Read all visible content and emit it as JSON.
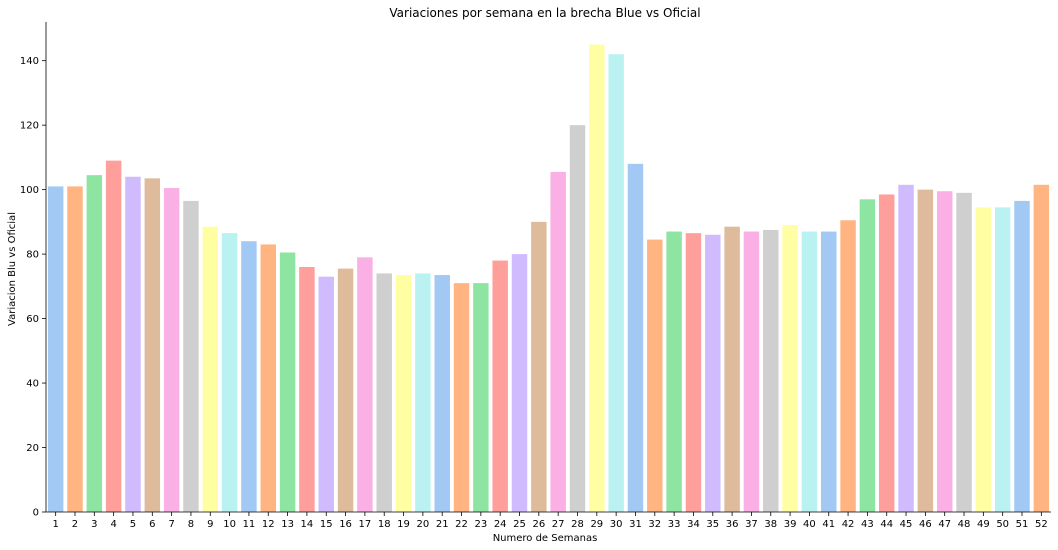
{
  "chart_data": {
    "type": "bar",
    "title": "Variaciones por semana en la brecha Blue vs Oficial",
    "xlabel": "Numero de Semanas",
    "ylabel": "Variacion Blu vs Oficial",
    "ylim": [
      0,
      152
    ],
    "yticks": [
      0,
      20,
      40,
      60,
      80,
      100,
      120,
      140
    ],
    "grid": false,
    "categories": [
      "1",
      "2",
      "3",
      "4",
      "5",
      "6",
      "7",
      "8",
      "9",
      "10",
      "11",
      "12",
      "13",
      "14",
      "15",
      "16",
      "17",
      "18",
      "19",
      "20",
      "21",
      "22",
      "23",
      "24",
      "25",
      "26",
      "27",
      "28",
      "29",
      "30",
      "31",
      "32",
      "33",
      "34",
      "35",
      "36",
      "37",
      "38",
      "39",
      "40",
      "41",
      "42",
      "43",
      "44",
      "45",
      "46",
      "47",
      "48",
      "49",
      "50",
      "51",
      "52"
    ],
    "values": [
      101,
      101,
      104.5,
      109,
      104,
      103.5,
      100.5,
      96.5,
      88.5,
      86.5,
      84,
      83,
      80.5,
      76,
      73,
      75.5,
      79,
      74,
      73.5,
      74,
      73.5,
      71,
      71,
      78,
      80,
      90,
      105.5,
      120,
      145,
      142,
      108,
      84.5,
      87,
      86.5,
      86,
      88.5,
      87,
      87.5,
      89,
      87,
      87,
      90.5,
      97,
      98.5,
      101.5,
      100,
      99.5,
      99,
      94.5,
      94.5,
      96.5,
      101.5
    ],
    "palette": [
      "#a1c9f4",
      "#ffb482",
      "#8de5a1",
      "#ff9f9b",
      "#d0bbff",
      "#debb9b",
      "#fab0e4",
      "#cfcfcf",
      "#fffea3",
      "#b9f2f0"
    ]
  }
}
